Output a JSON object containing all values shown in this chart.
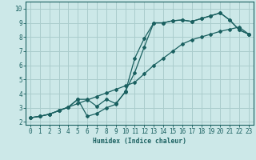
{
  "xlabel": "Humidex (Indice chaleur)",
  "bg_color": "#cce8e8",
  "grid_color": "#aacccc",
  "line_color": "#1a6060",
  "line1_x": [
    0,
    1,
    2,
    3,
    4,
    5,
    6,
    7,
    8,
    9,
    10,
    11,
    12,
    13,
    14,
    15,
    16,
    17,
    18,
    19,
    20,
    21,
    22,
    23
  ],
  "line1_y": [
    2.3,
    2.4,
    2.55,
    2.8,
    3.05,
    3.3,
    3.55,
    3.8,
    4.05,
    4.3,
    4.55,
    4.8,
    5.4,
    6.0,
    6.5,
    7.0,
    7.5,
    7.8,
    8.0,
    8.2,
    8.4,
    8.55,
    8.7,
    8.2
  ],
  "line2_x": [
    0,
    1,
    2,
    3,
    4,
    5,
    6,
    7,
    8,
    9,
    10,
    11,
    12,
    13,
    14,
    15,
    16,
    17,
    18,
    19,
    20,
    21,
    22,
    23
  ],
  "line2_y": [
    2.3,
    2.4,
    2.55,
    2.8,
    3.05,
    3.6,
    2.4,
    2.6,
    3.0,
    3.25,
    4.15,
    5.5,
    7.3,
    9.0,
    9.0,
    9.15,
    9.2,
    9.1,
    9.3,
    9.5,
    9.7,
    9.2,
    8.5,
    8.2
  ],
  "line3_x": [
    0,
    1,
    2,
    3,
    4,
    5,
    6,
    7,
    8,
    9,
    10,
    11,
    12,
    13,
    14,
    15,
    16,
    17,
    18,
    19,
    20,
    21,
    22,
    23
  ],
  "line3_y": [
    2.3,
    2.4,
    2.55,
    2.8,
    3.05,
    3.6,
    3.6,
    3.1,
    3.6,
    3.3,
    4.1,
    6.5,
    7.9,
    9.0,
    9.0,
    9.15,
    9.2,
    9.1,
    9.3,
    9.5,
    9.7,
    9.2,
    8.5,
    8.2
  ],
  "xlim": [
    -0.5,
    23.5
  ],
  "ylim": [
    1.8,
    10.5
  ],
  "yticks": [
    2,
    3,
    4,
    5,
    6,
    7,
    8,
    9,
    10
  ],
  "xticks": [
    0,
    1,
    2,
    3,
    4,
    5,
    6,
    7,
    8,
    9,
    10,
    11,
    12,
    13,
    14,
    15,
    16,
    17,
    18,
    19,
    20,
    21,
    22,
    23
  ],
  "xlabel_fontsize": 5.8,
  "tick_fontsize": 5.5
}
